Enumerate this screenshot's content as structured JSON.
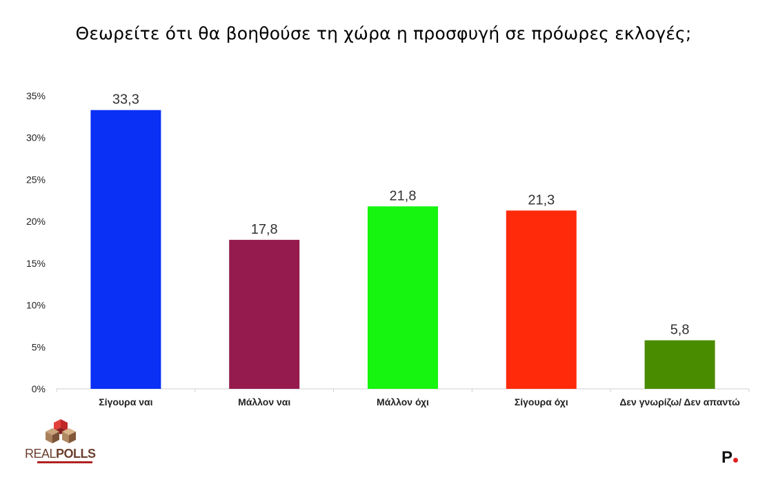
{
  "title": "Θεωρείτε ότι θα βοηθούσε τη χώρα η προσφυγή σε πρόωρες εκλογές;",
  "chart_data": {
    "type": "bar",
    "title": "Θεωρείτε ότι θα βοηθούσε τη χώρα η προσφυγή σε πρόωρες εκλογές;",
    "categories": [
      "Σίγουρα ναι",
      "Μάλλον ναι",
      "Μάλλον όχι",
      "Σίγουρα όχι",
      "Δεν γνωρίζω/ Δεν απαντώ"
    ],
    "values": [
      33.3,
      17.8,
      21.8,
      21.3,
      5.8
    ],
    "data_labels": [
      "33,3",
      "17,8",
      "21,8",
      "21,3",
      "5,8"
    ],
    "colors": [
      "#0a30f5",
      "#951a4d",
      "#16f50f",
      "#ff2a0a",
      "#4a8c00"
    ],
    "ylim": [
      0,
      35
    ],
    "yticks": [
      "0%",
      "5%",
      "10%",
      "15%",
      "20%",
      "25%",
      "30%",
      "35%"
    ],
    "ytick_values": [
      0,
      5,
      10,
      15,
      20,
      25,
      30,
      35
    ],
    "grid": false,
    "legend": "none",
    "xlabel": "",
    "ylabel": ""
  },
  "logo": {
    "text_bold": "REAL",
    "text_light": "POLLS",
    "icon": "realpolls-logo-icon"
  },
  "brand": {
    "letter": "P",
    "icon": "brand-p-dot-icon"
  }
}
